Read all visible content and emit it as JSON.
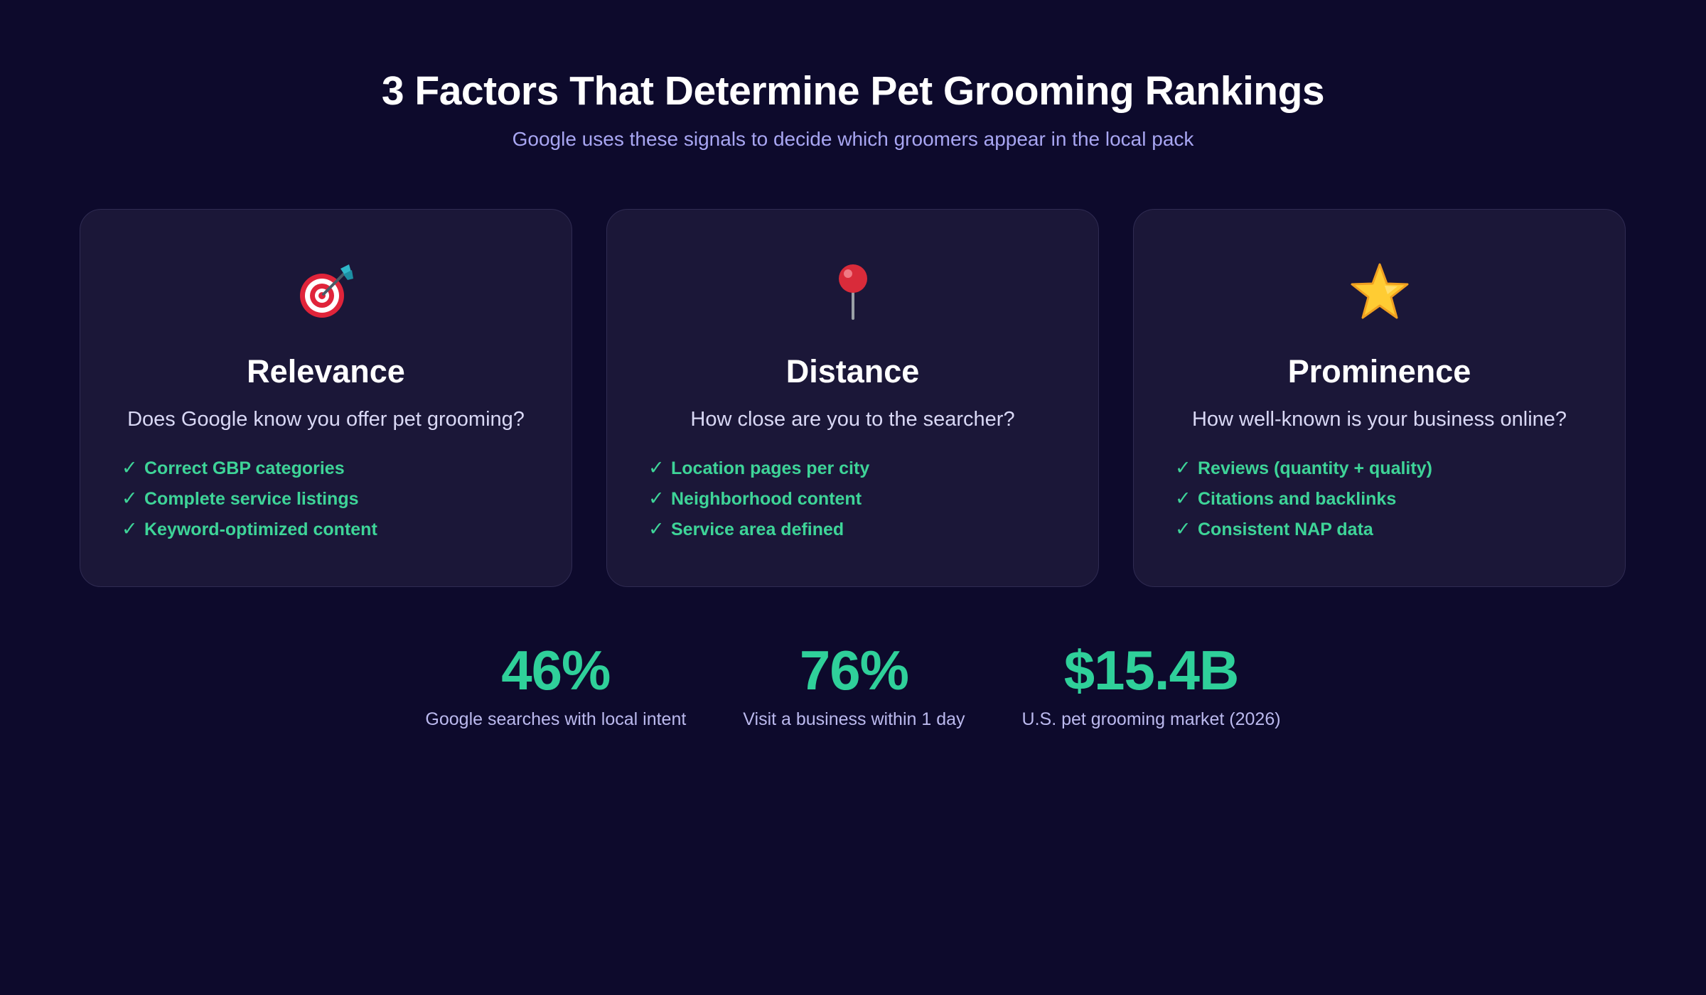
{
  "header": {
    "title": "3 Factors That Determine Pet Grooming Rankings",
    "subtitle": "Google uses these signals to decide which groomers appear in the local pack"
  },
  "cards": [
    {
      "icon": "target-icon",
      "title": "Relevance",
      "question": "Does Google know you offer pet grooming?",
      "items": [
        "Correct GBP categories",
        "Complete service listings",
        "Keyword-optimized content"
      ]
    },
    {
      "icon": "pushpin-icon",
      "title": "Distance",
      "question": "How close are you to the searcher?",
      "items": [
        "Location pages per city",
        "Neighborhood content",
        "Service area defined"
      ]
    },
    {
      "icon": "star-icon",
      "title": "Prominence",
      "question": "How well-known is your business online?",
      "items": [
        "Reviews (quantity + quality)",
        "Citations and backlinks",
        "Consistent NAP data"
      ]
    }
  ],
  "check_glyph": "✓",
  "stats": [
    {
      "value": "46%",
      "label": "Google searches with local intent"
    },
    {
      "value": "76%",
      "label": "Visit a business within 1 day"
    },
    {
      "value": "$15.4B",
      "label": "U.S. pet grooming market (2026)"
    }
  ],
  "colors": {
    "background": "#0d0a2c",
    "card": "#1b1738",
    "accent_green": "#2fd09a",
    "subtitle": "#a8a6f2"
  }
}
